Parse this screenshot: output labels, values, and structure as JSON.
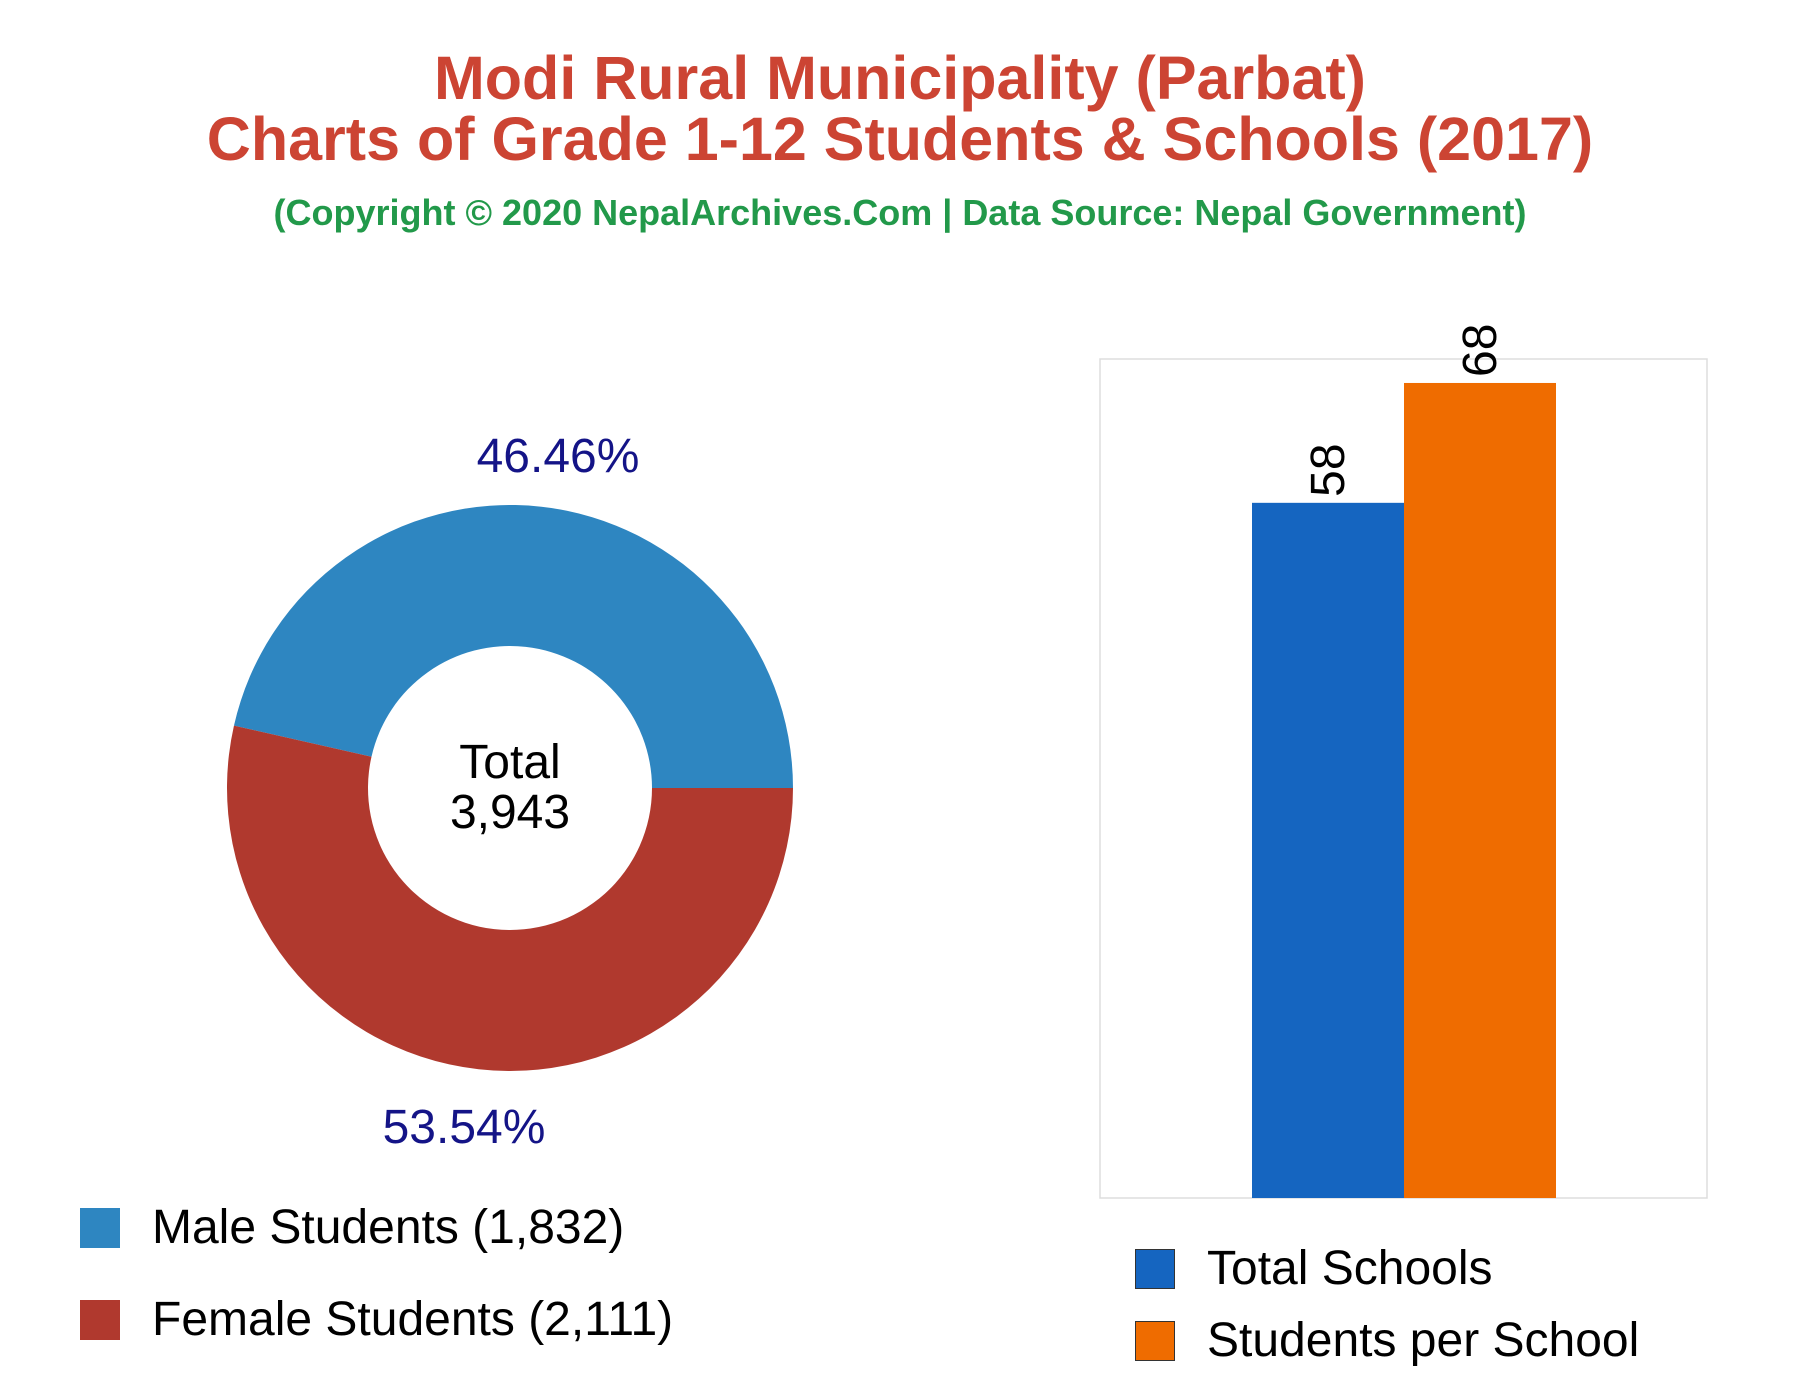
{
  "header": {
    "title_line1": "Modi Rural Municipality (Parbat)",
    "title_line2": "Charts of Grade 1-12 Students & Schools (2017)",
    "subtitle": "(Copyright © 2020 NepalArchives.Com | Data Source: Nepal Government)"
  },
  "colors": {
    "title": "#cc4433",
    "subtitle": "#22994a",
    "male": "#2e86c1",
    "female": "#b0392e",
    "total_schools": "#1565c0",
    "students_per_school": "#ef6c00",
    "pct_label": "#141487"
  },
  "donut": {
    "center_label": "Total",
    "center_value": "3,943",
    "legend": [
      {
        "label": "Male Students (1,832)"
      },
      {
        "label": "Female Students (2,111)"
      }
    ]
  },
  "bars_legend": [
    {
      "label": "Total Schools"
    },
    {
      "label": "Students per School"
    }
  ],
  "chart_data": [
    {
      "type": "pie",
      "style": "donut",
      "categories": [
        "Male Students",
        "Female Students"
      ],
      "values": [
        1832,
        2111
      ],
      "percent_labels": [
        "46.46%",
        "53.54%"
      ],
      "total": 3943,
      "legend_position": "bottom-left"
    },
    {
      "type": "bar",
      "categories": [
        "Total Schools",
        "Students per School"
      ],
      "values": [
        58,
        68
      ],
      "value_labels": [
        "58",
        "68"
      ],
      "ylim": [
        0,
        70
      ],
      "grid": false,
      "legend_position": "bottom"
    }
  ]
}
